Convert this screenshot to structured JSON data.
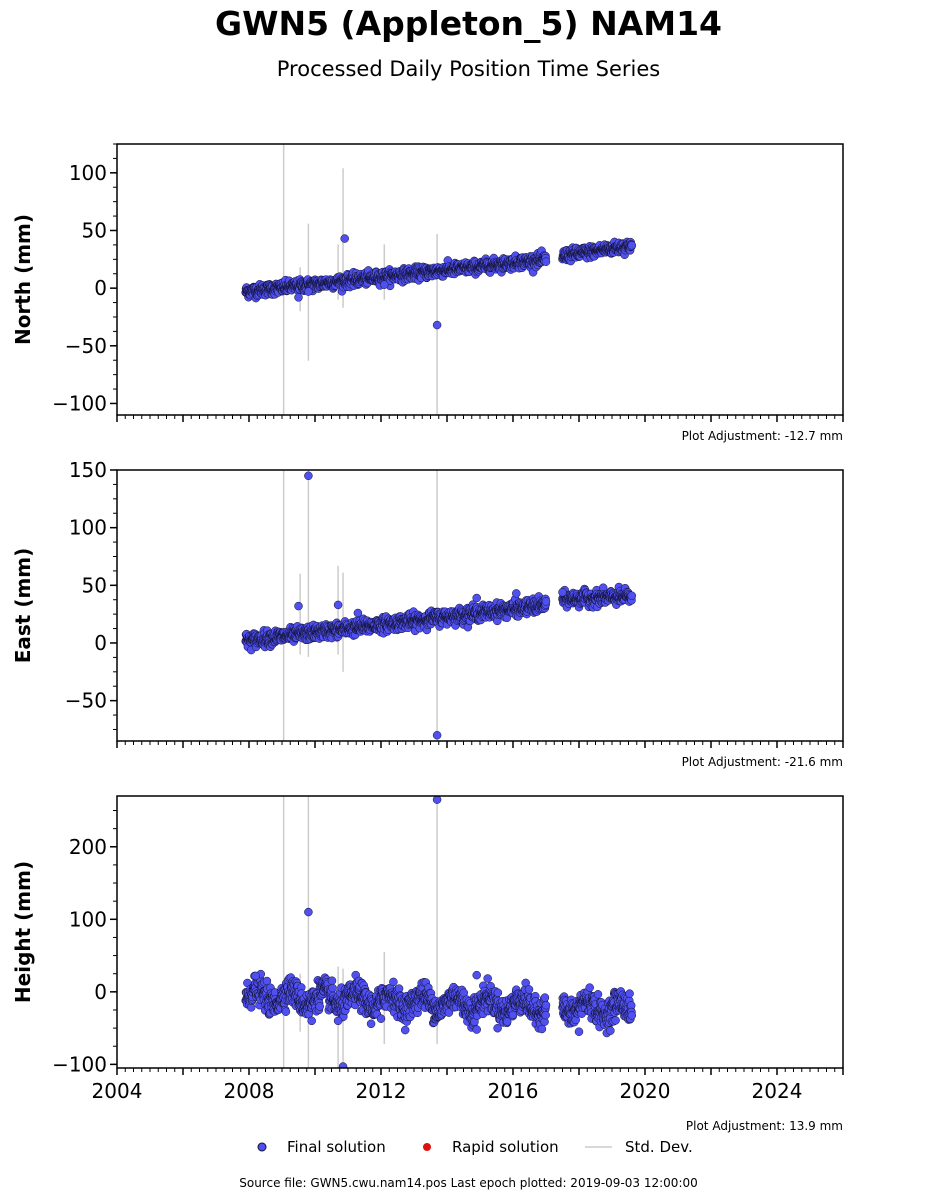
{
  "title": "GWN5 (Appleton_5) NAM14",
  "subtitle": "Processed Daily Position Time Series",
  "footer": "Source file: GWN5.cwu.nam14.pos  Last epoch plotted: 2019-09-03 12:00:00",
  "legend": {
    "final": "Final solution",
    "rapid": "Rapid solution",
    "std": "Std. Dev."
  },
  "colors": {
    "final": "#5050f0",
    "rapid": "#e01010",
    "std": "#cccccc",
    "edge": "#101030"
  },
  "chart_data": [
    {
      "type": "scatter",
      "ylabel": "North (mm)",
      "adjustment_label": "Plot Adjustment: -12.7 mm",
      "xlim": [
        2004,
        2026
      ],
      "ylim": [
        -110,
        125
      ],
      "yticks": [
        100,
        50,
        0,
        -50,
        -100
      ],
      "ytick_labels": [
        "100",
        "50",
        "0",
        "−50",
        "−100"
      ],
      "trend": {
        "start": [
          2007.9,
          -3
        ],
        "end": [
          2017.0,
          25
        ],
        "resume": [
          2017.5,
          28
        ],
        "stop": [
          2019.6,
          37
        ]
      },
      "scatter_sd": 2.5,
      "outliers": [
        {
          "x": 2009.5,
          "y": -8
        },
        {
          "x": 2009.8,
          "y": -3
        },
        {
          "x": 2010.9,
          "y": 43
        },
        {
          "x": 2012.1,
          "y": 3
        },
        {
          "x": 2013.7,
          "y": -32
        }
      ],
      "error_bars": [
        {
          "x": 2009.05,
          "lo": -110,
          "hi": 125
        },
        {
          "x": 2009.55,
          "lo": -20,
          "hi": 18
        },
        {
          "x": 2009.8,
          "lo": -63,
          "hi": 56
        },
        {
          "x": 2010.7,
          "lo": -10,
          "hi": 38
        },
        {
          "x": 2010.85,
          "lo": -17,
          "hi": 104
        },
        {
          "x": 2012.1,
          "lo": -10,
          "hi": 38
        },
        {
          "x": 2013.7,
          "lo": -110,
          "hi": 47
        }
      ]
    },
    {
      "type": "scatter",
      "ylabel": "East (mm)",
      "adjustment_label": "Plot Adjustment: -21.6 mm",
      "xlim": [
        2004,
        2026
      ],
      "ylim": [
        -85,
        150
      ],
      "yticks": [
        150,
        100,
        50,
        0,
        -50
      ],
      "ytick_labels": [
        "150",
        "100",
        "50",
        "0",
        "−50"
      ],
      "trend": {
        "start": [
          2007.9,
          2
        ],
        "end": [
          2017.0,
          33
        ],
        "resume": [
          2017.5,
          38
        ],
        "stop": [
          2019.6,
          40
        ]
      },
      "scatter_sd": 3,
      "outliers": [
        {
          "x": 2009.8,
          "y": 145
        },
        {
          "x": 2009.5,
          "y": 32
        },
        {
          "x": 2010.7,
          "y": 33
        },
        {
          "x": 2011.3,
          "y": 26
        },
        {
          "x": 2013.7,
          "y": -80
        },
        {
          "x": 2014.9,
          "y": 39
        },
        {
          "x": 2016.1,
          "y": 43
        },
        {
          "x": 2017.5,
          "y": 44
        }
      ],
      "error_bars": [
        {
          "x": 2009.05,
          "lo": -85,
          "hi": 150
        },
        {
          "x": 2009.55,
          "lo": -10,
          "hi": 60
        },
        {
          "x": 2009.8,
          "lo": -12,
          "hi": 150
        },
        {
          "x": 2010.7,
          "lo": -10,
          "hi": 67
        },
        {
          "x": 2010.85,
          "lo": -25,
          "hi": 61
        },
        {
          "x": 2013.7,
          "lo": -85,
          "hi": 150
        }
      ]
    },
    {
      "type": "scatter",
      "ylabel": "Height (mm)",
      "adjustment_label": "Plot Adjustment: 13.9 mm",
      "xlim": [
        2004,
        2026
      ],
      "ylim": [
        -105,
        270
      ],
      "yticks": [
        200,
        100,
        0,
        -100
      ],
      "ytick_labels": [
        "200",
        "100",
        "0",
        "−100"
      ],
      "xticks": [
        2004,
        2008,
        2012,
        2016,
        2020,
        2024
      ],
      "trend": {
        "start": [
          2007.9,
          -5
        ],
        "end": [
          2017.0,
          -20
        ],
        "resume": [
          2017.5,
          -20
        ],
        "stop": [
          2019.6,
          -25
        ]
      },
      "scatter_sd": 9,
      "outliers": [
        {
          "x": 2009.8,
          "y": 110
        },
        {
          "x": 2013.7,
          "y": 265
        },
        {
          "x": 2010.85,
          "y": -103
        },
        {
          "x": 2014.9,
          "y": 23
        },
        {
          "x": 2008.2,
          "y": 22
        },
        {
          "x": 2010.7,
          "y": -40
        },
        {
          "x": 2014.9,
          "y": -52
        },
        {
          "x": 2018.0,
          "y": -55
        },
        {
          "x": 2009.9,
          "y": -40
        },
        {
          "x": 2012.0,
          "y": -37
        }
      ],
      "error_bars": [
        {
          "x": 2009.05,
          "lo": -105,
          "hi": 270
        },
        {
          "x": 2009.55,
          "lo": -55,
          "hi": 25
        },
        {
          "x": 2009.8,
          "lo": -105,
          "hi": 270
        },
        {
          "x": 2010.7,
          "lo": -105,
          "hi": 35
        },
        {
          "x": 2010.85,
          "lo": -105,
          "hi": 32
        },
        {
          "x": 2012.1,
          "lo": -72,
          "hi": 55
        },
        {
          "x": 2013.7,
          "lo": -72,
          "hi": 270
        }
      ]
    }
  ]
}
